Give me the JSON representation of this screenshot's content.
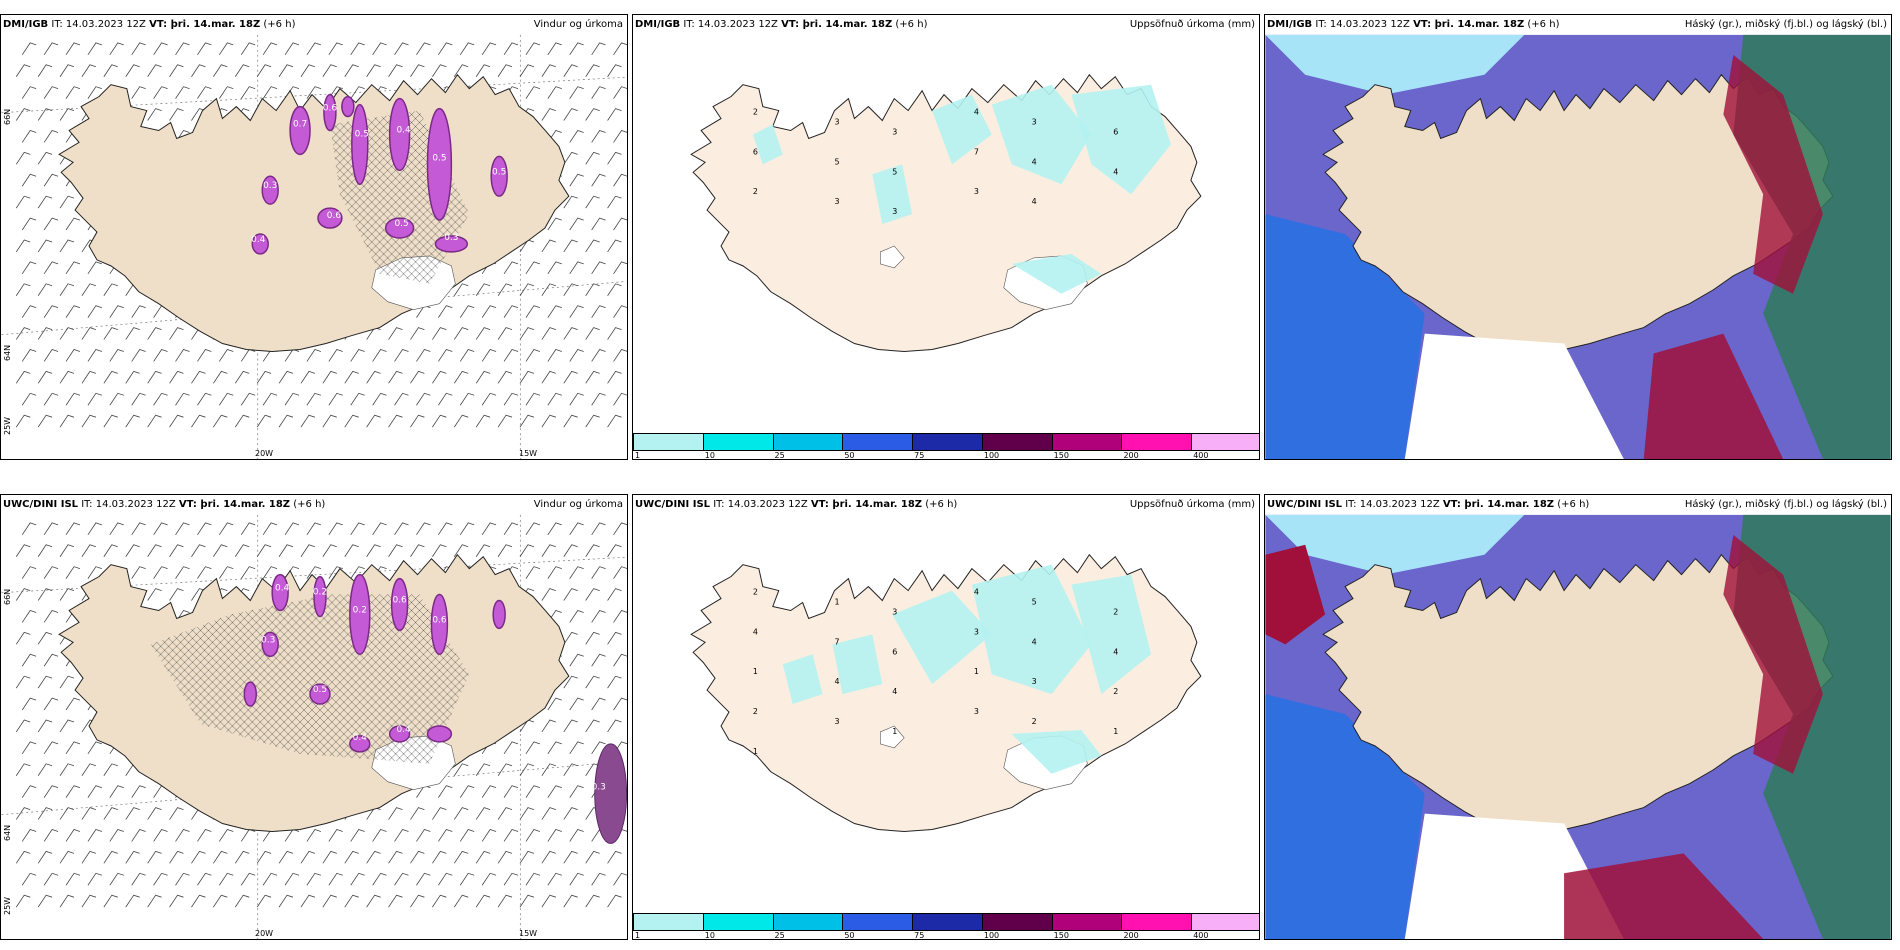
{
  "rows": [
    {
      "panels": [
        {
          "model": "DMI/IGB",
          "it_label": "IT: 14.03.2023 12Z",
          "vt_label": "VT: þri. 14.mar. 18Z",
          "lead": "(+6 h)",
          "title": "Vindur og úrkoma",
          "type": "wind"
        },
        {
          "model": "DMI/IGB",
          "it_label": "IT: 14.03.2023 12Z",
          "vt_label": "VT: þri. 14.mar. 18Z",
          "lead": "(+6 h)",
          "title": "Uppsöfnuð úrkoma (mm)",
          "type": "precip"
        },
        {
          "model": "DMI/IGB",
          "it_label": "IT: 14.03.2023 12Z",
          "vt_label": "VT: þri. 14.mar. 18Z",
          "lead": "(+6 h)",
          "title": "Háský (gr.), miðský (fj.bl.) og lágský (bl.)",
          "type": "cloud"
        }
      ]
    },
    {
      "panels": [
        {
          "model": "UWC/DINI ISL",
          "it_label": "IT: 14.03.2023 12Z",
          "vt_label": "VT: þri. 14.mar. 18Z",
          "lead": "(+6 h)",
          "title": "Vindur og úrkoma",
          "type": "wind"
        },
        {
          "model": "UWC/DINI ISL",
          "it_label": "IT: 14.03.2023 12Z",
          "vt_label": "VT: þri. 14.mar. 18Z",
          "lead": "(+6 h)",
          "title": "Uppsöfnuð úrkoma (mm)",
          "type": "precip"
        },
        {
          "model": "UWC/DINI ISL",
          "it_label": "IT: 14.03.2023 12Z",
          "vt_label": "VT: þri. 14.mar. 18Z",
          "lead": "(+6 h)",
          "title": "Háský (gr.), miðský (fj.bl.) og lágský (bl.)",
          "type": "cloud"
        }
      ]
    }
  ],
  "axis_ticks": {
    "lon_20w": "20W",
    "lon_15w": "15W",
    "lat_66n": "66N",
    "lat_64n": "64N",
    "lon_25w": "25W"
  },
  "precip_legend": {
    "labels": [
      "1",
      "10",
      "25",
      "50",
      "75",
      "100",
      "150",
      "200",
      "400"
    ],
    "colors": [
      "#b4f2f2",
      "#00e8e8",
      "#00c0e8",
      "#2a5ce6",
      "#1c2aa8",
      "#60004a",
      "#b0007a",
      "#ff10b0",
      "#f7b0f7"
    ]
  },
  "precip_labels_top": [
    "2",
    "3",
    "3",
    "4",
    "3",
    "6",
    "6",
    "5",
    "5",
    "7",
    "4",
    "4",
    "2",
    "3",
    "3",
    "3",
    "4"
  ],
  "precip_labels_bottom": [
    "2",
    "1",
    "3",
    "4",
    "5",
    "2",
    "4",
    "7",
    "6",
    "3",
    "4",
    "4",
    "1",
    "4",
    "4",
    "1",
    "3",
    "2",
    "2",
    "3",
    "1",
    "3",
    "2",
    "1",
    "1"
  ],
  "wind_labels_top": [
    "0.7",
    "0.6",
    "0.5",
    "0.4",
    "0.5",
    "0.3",
    "0.6",
    "0.5",
    "0.3",
    "0.4",
    "0.5"
  ],
  "wind_labels_bottom": [
    "0.4",
    "0.2",
    "0.2",
    "0.6",
    "0.6",
    "0.3",
    "0.5",
    "0.4",
    "0.4",
    "0.3"
  ],
  "colors": {
    "land": "#efdfc8",
    "precip_land": "#fbeee0",
    "wind_precip": "#c45ad6",
    "wind_precip_dark": "#7a2a86",
    "cloud_high": "#6a66cc",
    "cloud_mid": "#2f6fe0",
    "cloud_low": "#a8e4f8",
    "cloud_red": "#a0103a",
    "cloud_green": "#2e7a5a"
  }
}
